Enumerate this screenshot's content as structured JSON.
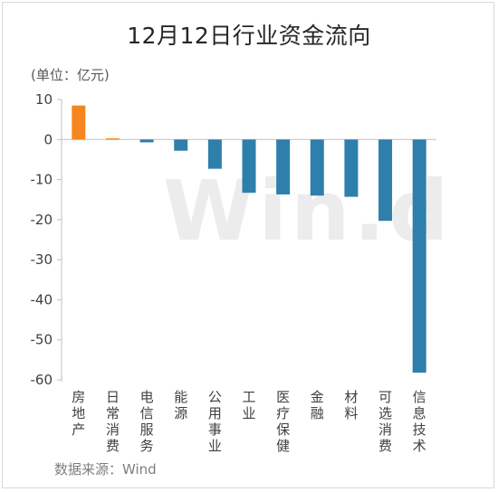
{
  "title": "12月12日行业资金流向",
  "unit_label": "(单位：亿元)",
  "source_label": "数据来源：Wind",
  "watermark": "Win.d",
  "colors": {
    "positive": "#f5861f",
    "negative": "#2e7fab"
  },
  "chart_data": {
    "type": "bar",
    "title": "12月12日行业资金流向",
    "ylabel": "(单位：亿元)",
    "xlabel": "",
    "ylim": [
      -60,
      10
    ],
    "yticks": [
      10,
      0,
      -10,
      -20,
      -30,
      -40,
      -50,
      -60
    ],
    "grid": false,
    "categories": [
      "房地产",
      "日常消费",
      "电信服务",
      "能源",
      "公用事业",
      "工业",
      "医疗保健",
      "金融",
      "材料",
      "可选消费",
      "信息技术"
    ],
    "values": [
      8.5,
      0.3,
      -0.7,
      -2.8,
      -7.3,
      -13.3,
      -13.7,
      -14.0,
      -14.3,
      -20.3,
      -58.2
    ]
  }
}
